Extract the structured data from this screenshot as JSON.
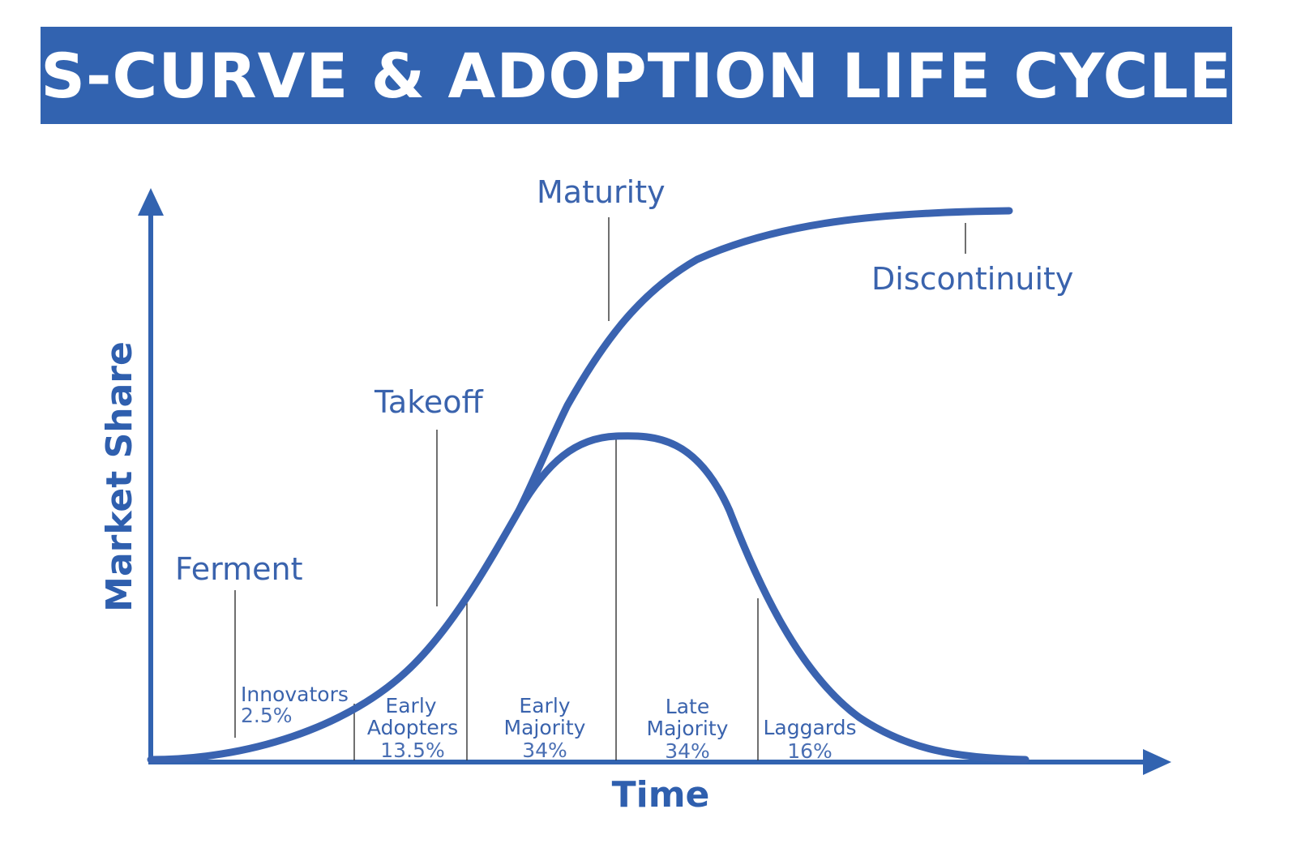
{
  "title": "S-CURVE & ADOPTION LIFE CYCLE",
  "axes": {
    "x_label": "Time",
    "y_label": "Market Share"
  },
  "stages": {
    "ferment": "Ferment",
    "takeoff": "Takeoff",
    "maturity": "Maturity",
    "discontinuity": "Discontinuity"
  },
  "segments": [
    {
      "name_lines": [
        "Innovators"
      ],
      "percent": "2.5%"
    },
    {
      "name_lines": [
        "Early",
        "Adopters"
      ],
      "percent": "13.5%"
    },
    {
      "name_lines": [
        "Early",
        "Majority"
      ],
      "percent": "34%"
    },
    {
      "name_lines": [
        "Late",
        "Majority"
      ],
      "percent": "34%"
    },
    {
      "name_lines": [
        "Laggards"
      ],
      "percent": "16%"
    }
  ],
  "colors": {
    "primary": "#3263b0",
    "curve": "#3a63b0",
    "divider": "#222222",
    "background": "#ffffff"
  }
}
